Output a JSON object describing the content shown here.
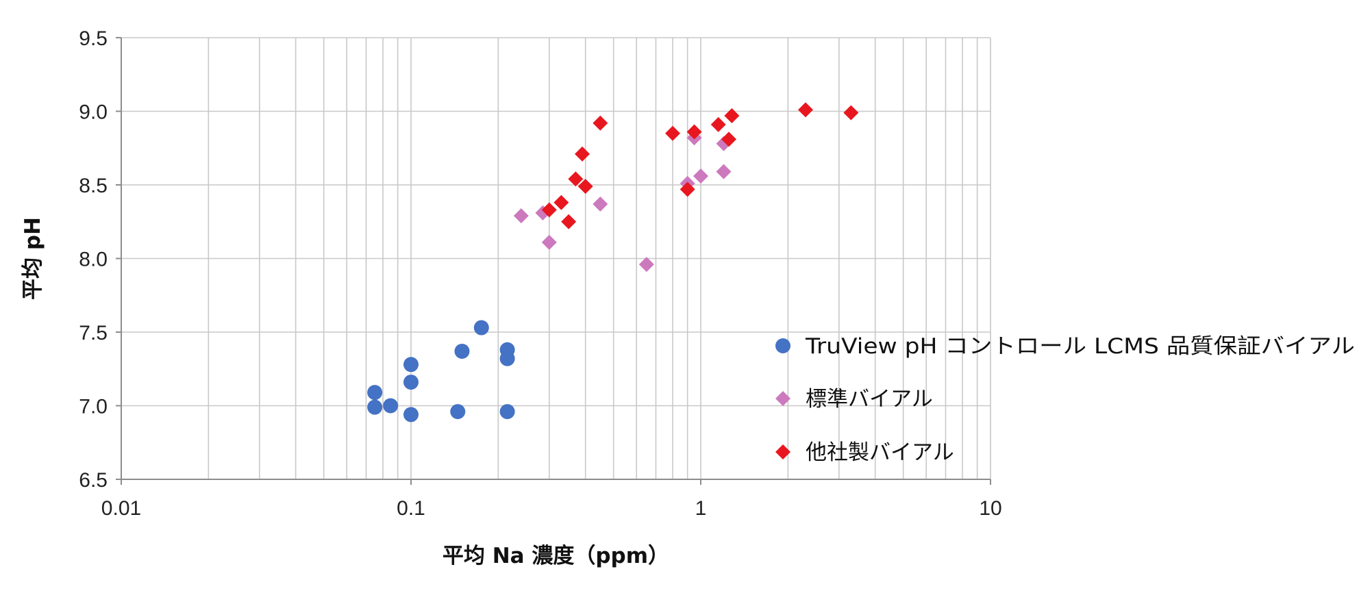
{
  "chart_data": {
    "type": "scatter",
    "title": "",
    "xlabel": "平均 Na 濃度（ppm）",
    "ylabel": "平均 pH",
    "xscale": "log",
    "xlim": [
      0.01,
      10
    ],
    "ylim": [
      6.5,
      9.5
    ],
    "xticks": [
      {
        "value": 0.01,
        "label": "0.01"
      },
      {
        "value": 0.1,
        "label": "0.1"
      },
      {
        "value": 1,
        "label": "1"
      },
      {
        "value": 10,
        "label": "10"
      }
    ],
    "yticks": [
      {
        "value": 6.5,
        "label": "6.5"
      },
      {
        "value": 7.0,
        "label": "7.0"
      },
      {
        "value": 7.5,
        "label": "7.5"
      },
      {
        "value": 8.0,
        "label": "8.0"
      },
      {
        "value": 8.5,
        "label": "8.5"
      },
      {
        "value": 9.0,
        "label": "9.0"
      },
      {
        "value": 9.5,
        "label": "9.5"
      }
    ],
    "grid": true,
    "legend_position": "right",
    "series": [
      {
        "name": "TruView pH コントロール LCMS 品質保証バイアル",
        "marker": "circle",
        "color": "#4472C4",
        "points": [
          [
            0.075,
            7.09
          ],
          [
            0.075,
            6.99
          ],
          [
            0.085,
            7.0
          ],
          [
            0.1,
            7.28
          ],
          [
            0.1,
            7.16
          ],
          [
            0.1,
            6.94
          ],
          [
            0.145,
            6.96
          ],
          [
            0.15,
            7.37
          ],
          [
            0.175,
            7.53
          ],
          [
            0.215,
            7.38
          ],
          [
            0.215,
            7.32
          ],
          [
            0.215,
            6.96
          ]
        ]
      },
      {
        "name": "標準バイアル",
        "marker": "diamond",
        "color": "#CC79BE",
        "points": [
          [
            0.24,
            8.29
          ],
          [
            0.285,
            8.31
          ],
          [
            0.3,
            8.11
          ],
          [
            0.45,
            8.37
          ],
          [
            0.65,
            7.96
          ],
          [
            0.9,
            8.51
          ],
          [
            0.95,
            8.82
          ],
          [
            1.0,
            8.56
          ],
          [
            1.2,
            8.59
          ],
          [
            1.2,
            8.78
          ]
        ]
      },
      {
        "name": "他社製バイアル",
        "marker": "diamond",
        "color": "#E8171F",
        "points": [
          [
            0.3,
            8.33
          ],
          [
            0.33,
            8.38
          ],
          [
            0.35,
            8.25
          ],
          [
            0.37,
            8.54
          ],
          [
            0.39,
            8.71
          ],
          [
            0.4,
            8.49
          ],
          [
            0.45,
            8.92
          ],
          [
            0.8,
            8.85
          ],
          [
            0.9,
            8.47
          ],
          [
            0.95,
            8.86
          ],
          [
            1.15,
            8.91
          ],
          [
            1.25,
            8.81
          ],
          [
            1.28,
            8.97
          ],
          [
            2.3,
            9.01
          ],
          [
            3.3,
            8.99
          ]
        ]
      }
    ]
  }
}
